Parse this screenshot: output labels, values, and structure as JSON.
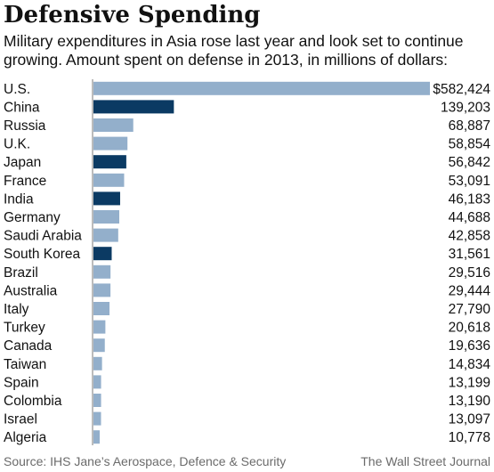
{
  "title": "Defensive Spending",
  "subtitle": "Military expenditures in Asia rose last year and look set to continue growing. Amount spent on defense in 2013, in millions of dollars:",
  "source": "Source: IHS Jane’s Aerospace, Defence & Security",
  "credit": "The Wall Street Journal",
  "colors": {
    "default_bar": "#93AFCB",
    "asia_bar": "#0B3A63",
    "guide_line": "#7a7a7a",
    "text": "#111111"
  },
  "chart_data": {
    "type": "bar",
    "orientation": "horizontal",
    "categories": [
      "U.S.",
      "China",
      "Russia",
      "U.K.",
      "Japan",
      "France",
      "India",
      "Germany",
      "Saudi Arabia",
      "South Korea",
      "Brazil",
      "Australia",
      "Italy",
      "Turkey",
      "Canada",
      "Taiwan",
      "Spain",
      "Colombia",
      "Israel",
      "Algeria"
    ],
    "values": [
      582424,
      139203,
      68887,
      58854,
      56842,
      53091,
      46183,
      44688,
      42858,
      31561,
      29516,
      29444,
      27790,
      20618,
      19636,
      14834,
      13199,
      13190,
      13097,
      10778
    ],
    "value_labels": [
      "$582,424",
      "139,203",
      "68,887",
      "58,854",
      "56,842",
      "53,091",
      "46,183",
      "44,688",
      "42,858",
      "31,561",
      "29,516",
      "29,444",
      "27,790",
      "20,618",
      "19,636",
      "14,834",
      "13,199",
      "13,190",
      "13,097",
      "10,778"
    ],
    "highlighted": [
      "China",
      "Japan",
      "India",
      "South Korea"
    ],
    "xlim": [
      0,
      582424
    ],
    "grid": false,
    "legend": "none"
  }
}
